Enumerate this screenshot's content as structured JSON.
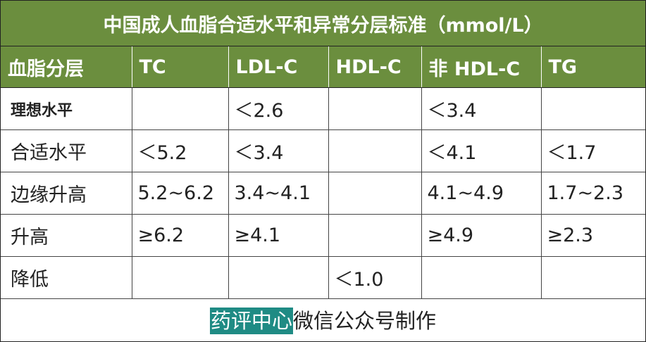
{
  "title": "中国成人血脂合适水平和异常分层标准（mmol/L）",
  "headers": [
    "血脂分层",
    "TC",
    "LDL-C",
    "HDL-C",
    "非 HDL-C",
    "TG"
  ],
  "rows": [
    {
      "label": "理想水平",
      "cells": [
        "",
        "＜2.6",
        "",
        "＜3.4",
        ""
      ]
    },
    {
      "label": "合适水平",
      "cells": [
        "＜5.2",
        "＜3.4",
        "",
        "＜4.1",
        "＜1.7"
      ]
    },
    {
      "label": "边缘升高",
      "cells": [
        "5.2~6.2",
        "3.4~4.1",
        "",
        "4.1~4.9",
        "1.7~2.3"
      ]
    },
    {
      "label": "升高",
      "cells": [
        "≥6.2",
        "≥4.1",
        "",
        "≥4.9",
        "≥2.3"
      ]
    },
    {
      "label": "降低",
      "cells": [
        "",
        "",
        "＜1.0",
        "",
        ""
      ]
    }
  ],
  "footer": {
    "highlight": "药评中心",
    "text": "微信公众号制作"
  },
  "colors": {
    "header_bg": "#6b8e3e",
    "highlight_bg": "#1f8b84"
  }
}
